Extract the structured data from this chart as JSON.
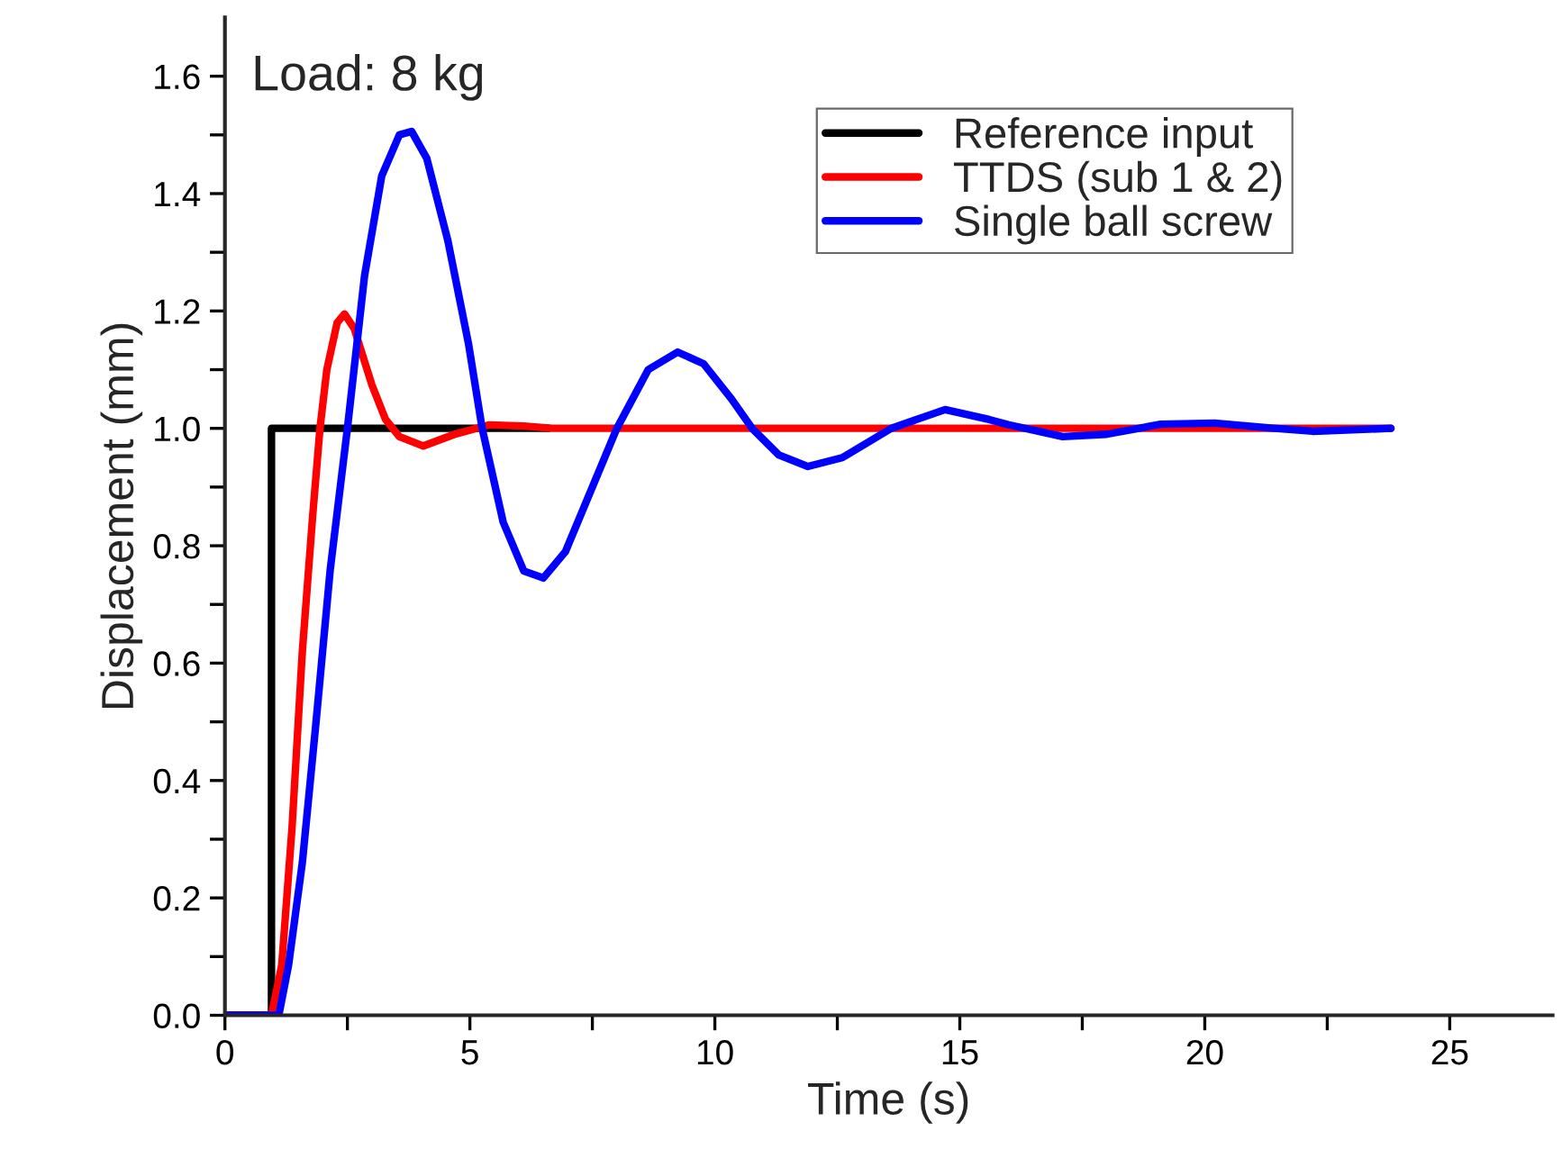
{
  "chart_data": {
    "type": "line",
    "xlabel": "Time (s)",
    "ylabel": "Displacement (mm)",
    "annotations": [
      "Load: 8 kg"
    ],
    "xlim": [
      0,
      27.1
    ],
    "ylim": [
      0,
      1.7
    ],
    "xticks": [
      0,
      {
        "value": 2.5,
        "label": null
      },
      5,
      {
        "value": 7.5,
        "label": null
      },
      10,
      {
        "value": 12.5,
        "label": null
      },
      15,
      {
        "value": 17.5,
        "label": null
      },
      20,
      {
        "value": 22.5,
        "label": null
      },
      25
    ],
    "yticks": [
      {
        "value": 0,
        "label": "0.0"
      },
      {
        "value": 0.1,
        "label": null
      },
      0.2,
      {
        "value": 0.3,
        "label": null
      },
      0.4,
      {
        "value": 0.5,
        "label": null
      },
      0.6,
      {
        "value": 0.7,
        "label": null
      },
      0.8,
      {
        "value": 0.9,
        "label": null
      },
      {
        "value": 1.0,
        "label": "1.0"
      },
      {
        "value": 1.1,
        "label": null
      },
      1.2,
      {
        "value": 1.3,
        "label": null
      },
      1.4,
      {
        "value": 1.5,
        "label": null
      },
      1.6
    ],
    "grid": false,
    "legend": "top right",
    "marker": "none",
    "line_style": "solid",
    "series": [
      {
        "name": "Reference input",
        "color": "#000000",
        "x": [
          0,
          0.95,
          0.95,
          6.6
        ],
        "values": [
          0,
          0,
          1.0,
          1.0
        ]
      },
      {
        "name": "TTDS (sub 1 & 2)",
        "color": "#ff0000",
        "x": [
          0,
          0.95,
          1.16,
          1.37,
          1.58,
          1.79,
          1.94,
          2.08,
          2.29,
          2.44,
          2.64,
          3.0,
          3.28,
          3.56,
          4.05,
          4.69,
          5.4,
          6.1,
          6.67,
          23.8
        ],
        "values": [
          0,
          0,
          0.086,
          0.32,
          0.62,
          0.85,
          1.0,
          1.1,
          1.18,
          1.195,
          1.17,
          1.074,
          1.015,
          0.986,
          0.97,
          0.99,
          1.006,
          1.004,
          1.0,
          1.0
        ]
      },
      {
        "name": "Single ball screw",
        "color": "#0000ff",
        "x": [
          0,
          1.1,
          1.3,
          1.58,
          1.86,
          2.15,
          2.5,
          2.85,
          3.2,
          3.56,
          3.81,
          4.12,
          4.55,
          4.97,
          5.25,
          5.68,
          6.1,
          6.5,
          6.95,
          7.5,
          8.0,
          8.64,
          9.24,
          9.77,
          10.34,
          10.76,
          11.3,
          11.9,
          12.6,
          13.6,
          14.7,
          15.6,
          16.0,
          17.1,
          18.0,
          19.1,
          20.2,
          21.3,
          22.2,
          23.8
        ],
        "values": [
          0,
          0,
          0.086,
          0.26,
          0.5,
          0.76,
          1.0,
          1.26,
          1.43,
          1.5,
          1.506,
          1.46,
          1.32,
          1.145,
          1.0,
          0.84,
          0.757,
          0.745,
          0.79,
          0.9,
          1.0,
          1.1,
          1.13,
          1.11,
          1.05,
          1.0,
          0.955,
          0.935,
          0.95,
          1.0,
          1.032,
          1.015,
          1.006,
          0.986,
          0.99,
          1.007,
          1.009,
          1.001,
          0.995,
          1.0
        ]
      }
    ]
  }
}
